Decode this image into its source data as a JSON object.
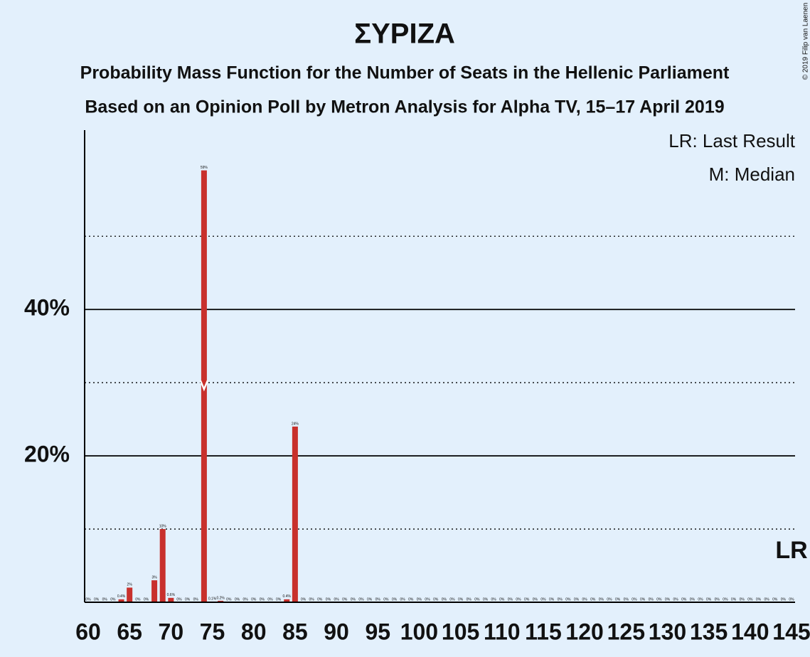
{
  "chart_data": {
    "type": "bar",
    "title": "ΣΥΡΙΖΑ",
    "subtitle": [
      "Probability Mass Function for the Number of Seats in the Hellenic Parliament",
      "Based on an Opinion Poll by Metron Analysis for Alpha TV, 15–17 April 2019"
    ],
    "legend": [
      "LR: Last Result",
      "M: Median"
    ],
    "copyright": "© 2019 Filip van Laenen",
    "last_result": {
      "seat": 145,
      "label": "LR"
    },
    "median": 74,
    "color": "#c8302c",
    "x": [
      60,
      61,
      62,
      63,
      64,
      65,
      66,
      67,
      68,
      69,
      70,
      71,
      72,
      73,
      74,
      75,
      76,
      77,
      78,
      79,
      80,
      81,
      82,
      83,
      84,
      85,
      86,
      87,
      88,
      89,
      90,
      91,
      92,
      93,
      94,
      95,
      96,
      97,
      98,
      99,
      100,
      101,
      102,
      103,
      104,
      105,
      106,
      107,
      108,
      109,
      110,
      111,
      112,
      113,
      114,
      115,
      116,
      117,
      118,
      119,
      120,
      121,
      122,
      123,
      124,
      125,
      126,
      127,
      128,
      129,
      130,
      131,
      132,
      133,
      134,
      135,
      136,
      137,
      138,
      139,
      140,
      141,
      142,
      143,
      144,
      145
    ],
    "values": [
      0,
      0,
      0,
      0,
      0.4,
      2,
      0,
      0,
      3,
      10,
      0.6,
      0,
      0,
      0,
      59,
      0.1,
      0.2,
      0,
      0,
      0,
      0,
      0,
      0,
      0,
      0.4,
      24,
      0,
      0,
      0,
      0,
      0,
      0,
      0,
      0,
      0,
      0,
      0,
      0,
      0,
      0,
      0,
      0,
      0,
      0,
      0,
      0,
      0,
      0,
      0,
      0,
      0,
      0,
      0,
      0,
      0,
      0,
      0,
      0,
      0,
      0,
      0,
      0,
      0,
      0,
      0,
      0,
      0,
      0,
      0,
      0,
      0,
      0,
      0,
      0,
      0,
      0,
      0,
      0,
      0,
      0,
      0,
      0,
      0,
      0,
      0,
      0
    ],
    "value_labels": [
      "0%",
      "0%",
      "0%",
      "0%",
      "0.4%",
      "2%",
      "0%",
      "0%",
      "3%",
      "10%",
      "0.6%",
      "0%",
      "0%",
      "0%",
      "59%",
      "0.1%",
      "0.2%",
      "0%",
      "0%",
      "0%",
      "0%",
      "0%",
      "0%",
      "0%",
      "0.4%",
      "24%",
      "0%",
      "0%",
      "0%",
      "0%",
      "0%",
      "0%",
      "0%",
      "0%",
      "0%",
      "0%",
      "0%",
      "0%",
      "0%",
      "0%",
      "0%",
      "0%",
      "0%",
      "0%",
      "0%",
      "0%",
      "0%",
      "0%",
      "0%",
      "0%",
      "0%",
      "0%",
      "0%",
      "0%",
      "0%",
      "0%",
      "0%",
      "0%",
      "0%",
      "0%",
      "0%",
      "0%",
      "0%",
      "0%",
      "0%",
      "0%",
      "0%",
      "0%",
      "0%",
      "0%",
      "0%",
      "0%",
      "0%",
      "0%",
      "0%",
      "0%",
      "0%",
      "0%",
      "0%",
      "0%",
      "0%",
      "0%",
      "0%",
      "0%",
      "0%",
      "0%"
    ],
    "xlim": [
      60,
      145
    ],
    "xticks": [
      60,
      65,
      70,
      75,
      80,
      85,
      90,
      95,
      100,
      105,
      110,
      115,
      120,
      125,
      130,
      135,
      140,
      145
    ],
    "ylim": [
      0,
      64.5
    ],
    "yticks": [
      {
        "value": 20,
        "label": "20%"
      },
      {
        "value": 40,
        "label": "40%"
      }
    ],
    "minor_gridlines": [
      10,
      30,
      50
    ]
  }
}
